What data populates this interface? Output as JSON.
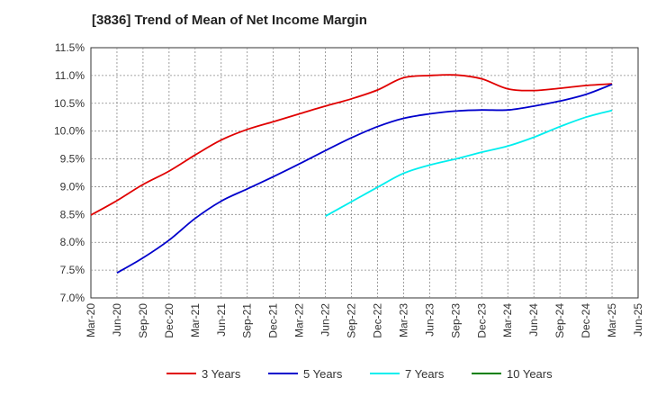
{
  "chart_data": {
    "type": "line",
    "title": "[3836]  Trend of Mean of Net Income Margin",
    "xlabel": "",
    "ylabel": "",
    "x_ticks": [
      "Mar-20",
      "Jun-20",
      "Sep-20",
      "Dec-20",
      "Mar-21",
      "Jun-21",
      "Sep-21",
      "Dec-21",
      "Mar-22",
      "Jun-22",
      "Sep-22",
      "Dec-22",
      "Mar-23",
      "Jun-23",
      "Sep-23",
      "Dec-23",
      "Mar-24",
      "Jun-24",
      "Sep-24",
      "Dec-24",
      "Mar-25",
      "Jun-25"
    ],
    "y_ticks": [
      "7.0%",
      "7.5%",
      "8.0%",
      "8.5%",
      "9.0%",
      "9.5%",
      "10.0%",
      "10.5%",
      "11.0%",
      "11.5%"
    ],
    "ylim": [
      7.0,
      11.5
    ],
    "grid": true,
    "legend_position": "bottom",
    "series": [
      {
        "name": "3 Years",
        "color": "#e00000",
        "x": [
          "Mar-20",
          "Jun-20",
          "Sep-20",
          "Dec-20",
          "Mar-21",
          "Jun-21",
          "Sep-21",
          "Dec-21",
          "Mar-22",
          "Jun-22",
          "Sep-22",
          "Dec-22",
          "Mar-23",
          "Jun-23",
          "Sep-23",
          "Dec-23",
          "Mar-24",
          "Jun-24",
          "Sep-24",
          "Dec-24",
          "Mar-25"
        ],
        "values": [
          8.49,
          8.75,
          9.04,
          9.28,
          9.57,
          9.84,
          10.03,
          10.17,
          10.31,
          10.45,
          10.58,
          10.74,
          10.96,
          11.0,
          11.01,
          10.94,
          10.76,
          10.73,
          10.77,
          10.82,
          10.85
        ]
      },
      {
        "name": "5 Years",
        "color": "#0000cc",
        "x": [
          "Jun-20",
          "Sep-20",
          "Dec-20",
          "Mar-21",
          "Jun-21",
          "Sep-21",
          "Dec-21",
          "Mar-22",
          "Jun-22",
          "Sep-22",
          "Dec-22",
          "Mar-23",
          "Jun-23",
          "Sep-23",
          "Dec-23",
          "Mar-24",
          "Jun-24",
          "Sep-24",
          "Dec-24",
          "Mar-25"
        ],
        "values": [
          7.45,
          7.72,
          8.04,
          8.43,
          8.74,
          8.96,
          9.18,
          9.41,
          9.65,
          9.88,
          10.08,
          10.23,
          10.31,
          10.36,
          10.38,
          10.38,
          10.45,
          10.54,
          10.66,
          10.84
        ]
      },
      {
        "name": "7 Years",
        "color": "#00eeee",
        "x": [
          "Jun-22",
          "Sep-22",
          "Dec-22",
          "Mar-23",
          "Jun-23",
          "Sep-23",
          "Dec-23",
          "Mar-24",
          "Jun-24",
          "Sep-24",
          "Dec-24",
          "Mar-25"
        ],
        "values": [
          8.47,
          8.73,
          8.99,
          9.24,
          9.39,
          9.5,
          9.62,
          9.73,
          9.89,
          10.08,
          10.25,
          10.37
        ]
      },
      {
        "name": "10 Years",
        "color": "#008000",
        "x": [],
        "values": []
      }
    ]
  }
}
